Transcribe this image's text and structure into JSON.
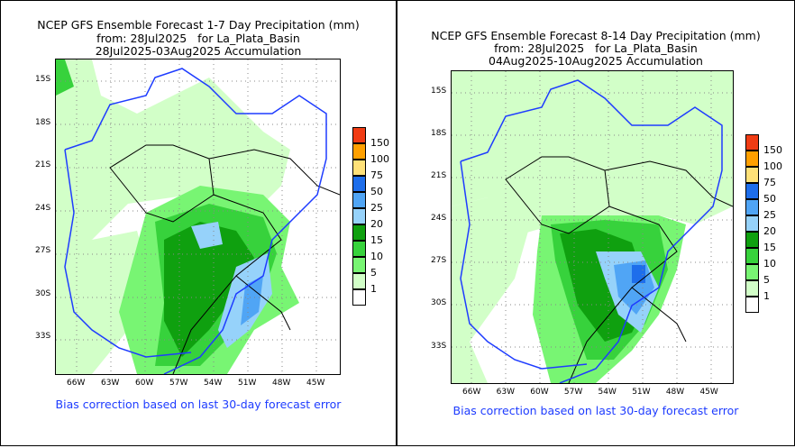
{
  "panels": [
    {
      "title": [
        "NCEP GFS Ensemble Forecast 1-7 Day Precipitation (mm)",
        "from: 28Jul2025   for La_Plata_Basin",
        "28Jul2025-03Aug2025 Accumulation"
      ],
      "footer": "Bias correction based on last 30-day forecast error"
    },
    {
      "title": [
        "NCEP GFS Ensemble Forecast 8-14 Day Precipitation (mm)",
        "from: 28Jul2025   for La_Plata_Basin",
        "04Aug2025-10Aug2025 Accumulation"
      ],
      "footer": "Bias correction based on last 30-day forecast error"
    }
  ],
  "lat_ticks": [
    "15S",
    "18S",
    "21S",
    "24S",
    "27S",
    "30S",
    "33S"
  ],
  "lon_ticks": [
    "66W",
    "63W",
    "60W",
    "57W",
    "54W",
    "51W",
    "48W",
    "45W"
  ],
  "legend": {
    "labels": [
      "150",
      "100",
      "75",
      "50",
      "25",
      "20",
      "15",
      "10",
      "5",
      "1"
    ],
    "colors": [
      "#f03c14",
      "#ffa000",
      "#ffe178",
      "#1e6eeb",
      "#50a5f5",
      "#96d2fa",
      "#0fa00f",
      "#37d23c",
      "#78f573",
      "#d2ffc8",
      "#ffffff"
    ]
  }
}
